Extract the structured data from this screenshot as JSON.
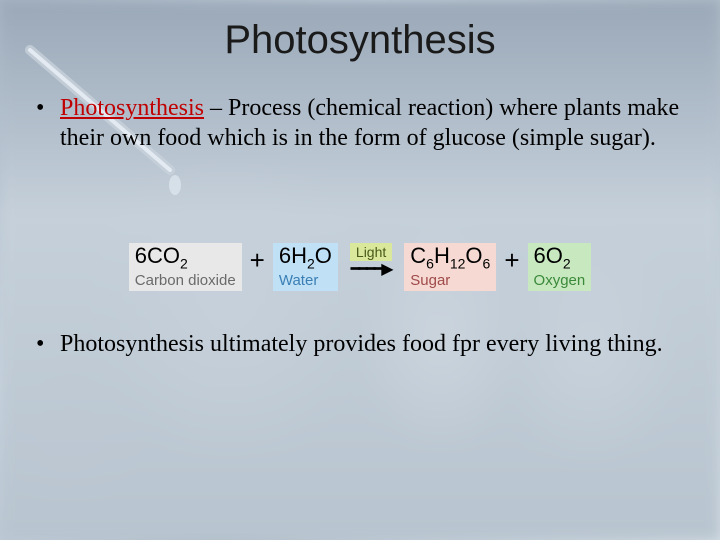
{
  "title": "Photosynthesis",
  "bullet1_term": "Photosynthesis",
  "bullet1_rest": " – Process (chemical reaction) where plants make their own food which is in the form of glucose (simple sugar).",
  "bullet2": "Photosynthesis ultimately provides food fpr every living thing.",
  "equation": {
    "reactant1": {
      "formula_html": "6CO<sub>2</sub>",
      "label": "Carbon dioxide",
      "bg": "#e8e8e8",
      "label_color": "#6a6a6a"
    },
    "reactant2": {
      "formula_html": "6H<sub>2</sub>O",
      "label": "Water",
      "bg": "#bfe0f5",
      "label_color": "#3a7fb5"
    },
    "light": {
      "text": "Light",
      "bg": "#d9e89a",
      "color": "#4a5a1a"
    },
    "product1": {
      "formula_html": "C<sub>6</sub>H<sub>12</sub>O<sub>6</sub>",
      "label": "Sugar",
      "bg": "#f5d9d2",
      "label_color": "#a04a4a"
    },
    "product2": {
      "formula_html": "6O<sub>2</sub>",
      "label": "Oxygen",
      "bg": "#c8e8bf",
      "label_color": "#3a8a3a"
    }
  }
}
